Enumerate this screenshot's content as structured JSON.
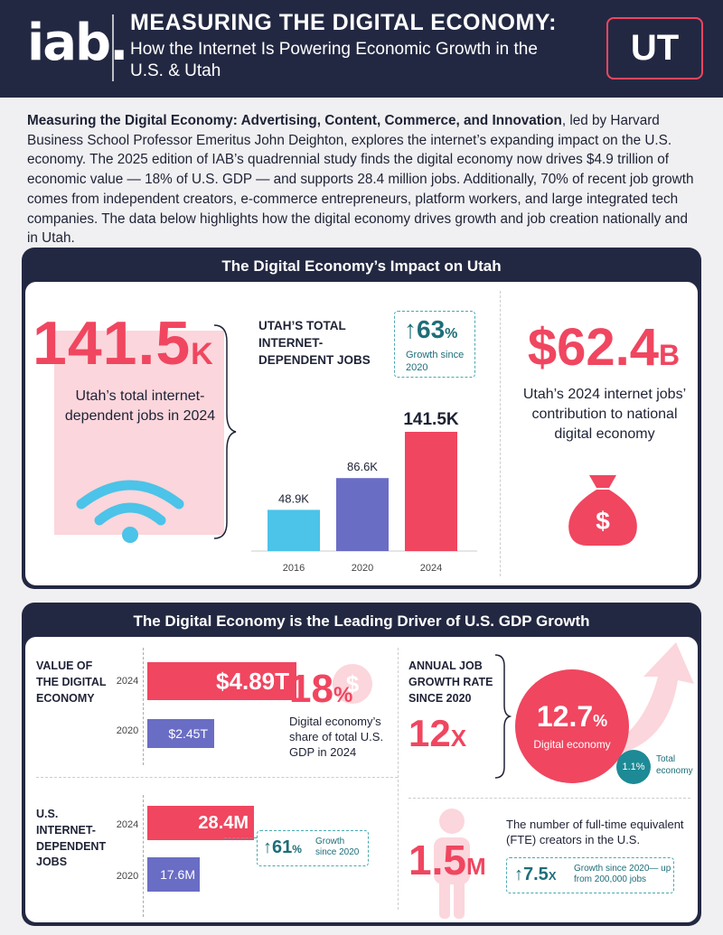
{
  "header": {
    "logo": "iab.",
    "title": "MEASURING THE DIGITAL ECONOMY:",
    "subtitle": "How the Internet Is Powering Economic Growth in the U.S. & Utah",
    "state": "UT"
  },
  "intro": {
    "bold": "Measuring the Digital Economy: Advertising, Content, Commerce, and Innovation",
    "text": ", led by Harvard Business School Professor Emeritus John Deighton, explores the internet’s expanding impact on the U.S. economy. The 2025 edition of IAB’s quadrennial study finds the digital economy now drives $4.9 trillion of economic value — 18% of U.S. GDP — and supports 28.4 million jobs. Additionally, 70% of recent job growth comes from independent creators, e-commerce entrepreneurs, platform workers, and large integrated tech companies. The data below highlights how the digital economy drives growth and job creation nationally and in Utah."
  },
  "panel1": {
    "title": "The Digital Economy’s Impact on Utah",
    "jobs": {
      "value": "141.5",
      "unit": "K",
      "caption": "Utah’s total internet-dependent jobs in 2024"
    },
    "chart_title": "UTAH’S TOTAL INTERNET-DEPENDENT JOBS",
    "growth": {
      "value": "63",
      "unit": "%",
      "label": "Growth since 2020"
    },
    "contrib": {
      "value": "$62.4",
      "unit": "B",
      "caption": "Utah’s 2024 internet jobs’ contribution to national digital economy"
    }
  },
  "chart_data": {
    "type": "bar",
    "title": "UTAH’S TOTAL INTERNET-DEPENDENT JOBS",
    "categories": [
      "2016",
      "2020",
      "2024"
    ],
    "values": [
      48.9,
      86.6,
      141.5
    ],
    "labels": [
      "48.9K",
      "86.6K",
      "141.5K"
    ],
    "colors": [
      "#4cc3e8",
      "#6a6dc4",
      "#f04660"
    ]
  },
  "panel2": {
    "title": "The Digital Economy is the Leading Driver of U.S. GDP Growth",
    "value": {
      "label": "VALUE OF THE DIGITAL ECONOMY",
      "y2024": "2024",
      "v2024": "$4.89T",
      "y2020": "2020",
      "v2020": "$2.45T",
      "share": "18",
      "share_unit": "%",
      "share_caption": "Digital economy’s share of total U.S. GDP in 2024"
    },
    "jobs": {
      "label": "U.S. INTERNET-DEPENDENT JOBS",
      "y2024": "2024",
      "v2024": "28.4M",
      "y2020": "2020",
      "v2020": "17.6M",
      "growth": "61",
      "growth_unit": "%",
      "growth_label": "Growth since 2020"
    },
    "rate": {
      "label": "ANNUAL JOB GROWTH RATE SINCE 2020",
      "mult": "12",
      "mult_unit": "X",
      "digital": "12.7",
      "digital_unit": "%",
      "digital_label": "Digital economy",
      "total": "1.1%",
      "total_label": "Total economy"
    },
    "creators": {
      "value": "1.5",
      "unit": "M",
      "caption": "The number of full-time equivalent (FTE) creators in the U.S.",
      "growth": "7.5",
      "growth_unit": "X",
      "growth_label": "Growth since 2020— up from 200,000 jobs"
    }
  }
}
